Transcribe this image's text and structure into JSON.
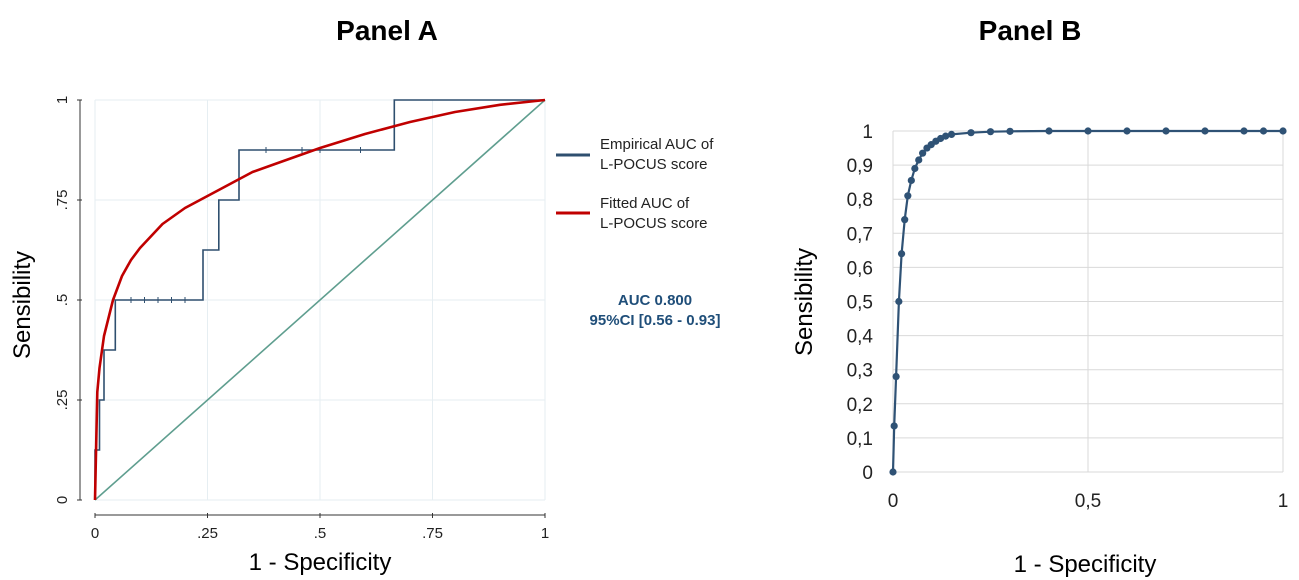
{
  "chart_data": [
    {
      "type": "line",
      "title": "Panel A",
      "xlabel": "1 - Specificity",
      "ylabel": "Sensibility",
      "xlim": [
        0,
        1
      ],
      "ylim": [
        0,
        1
      ],
      "x_ticks": [
        "0",
        ".25",
        ".5",
        ".75",
        "1"
      ],
      "y_ticks": [
        "0",
        ".25",
        ".5",
        ".75",
        "1"
      ],
      "grid": true,
      "legend_position": "right",
      "colors": {
        "empirical": "#2f4f6f",
        "fitted": "#c00000",
        "reference": "#5f9e8f",
        "annotation": "#1f4e79"
      },
      "series": [
        {
          "name": "Empirical AUC of L-POCUS score",
          "x": [
            0,
            0,
            0.01,
            0.01,
            0.02,
            0.02,
            0.045,
            0.045,
            0.24,
            0.24,
            0.275,
            0.275,
            0.32,
            0.32,
            0.665,
            0.665,
            1
          ],
          "y": [
            0,
            0.125,
            0.125,
            0.25,
            0.25,
            0.375,
            0.375,
            0.5,
            0.5,
            0.625,
            0.625,
            0.75,
            0.75,
            0.875,
            0.875,
            1,
            1
          ],
          "tick_marks_x": [
            0.08,
            0.11,
            0.14,
            0.17,
            0.2
          ],
          "tick_marks_x_upper": [
            0.38,
            0.46,
            0.5,
            0.59
          ]
        },
        {
          "name": "Fitted AUC of L-POCUS score",
          "x": [
            0,
            0.005,
            0.01,
            0.02,
            0.04,
            0.06,
            0.08,
            0.1,
            0.15,
            0.2,
            0.25,
            0.3,
            0.35,
            0.4,
            0.5,
            0.6,
            0.7,
            0.8,
            0.9,
            1
          ],
          "y": [
            0,
            0.27,
            0.33,
            0.41,
            0.5,
            0.56,
            0.6,
            0.63,
            0.69,
            0.73,
            0.76,
            0.79,
            0.82,
            0.84,
            0.88,
            0.915,
            0.945,
            0.97,
            0.988,
            1
          ]
        },
        {
          "name": "",
          "x": [
            0,
            1
          ],
          "y": [
            0,
            1
          ]
        }
      ],
      "annotation": [
        "AUC 0.800",
        "95%CI [0.56 - 0.93]"
      ]
    },
    {
      "type": "line",
      "title": "Panel B",
      "xlabel": "1 - Specificity",
      "ylabel": "Sensibility",
      "xlim": [
        0,
        1
      ],
      "ylim": [
        0,
        1
      ],
      "x_ticks": [
        "0",
        "0,5",
        "1"
      ],
      "y_ticks": [
        "0",
        "0,1",
        "0,2",
        "0,3",
        "0,4",
        "0,5",
        "0,6",
        "0,7",
        "0,8",
        "0,9",
        "1"
      ],
      "grid": true,
      "colors": {
        "line": "#2f5275"
      },
      "series": [
        {
          "name": "",
          "x": [
            0,
            0.003,
            0.008,
            0.015,
            0.022,
            0.03,
            0.038,
            0.047,
            0.056,
            0.066,
            0.076,
            0.087,
            0.098,
            0.11,
            0.122,
            0.135,
            0.15,
            0.2,
            0.25,
            0.3,
            0.4,
            0.5,
            0.6,
            0.7,
            0.8,
            0.9,
            0.95,
            1
          ],
          "y": [
            0,
            0.135,
            0.28,
            0.5,
            0.64,
            0.74,
            0.81,
            0.855,
            0.89,
            0.915,
            0.935,
            0.95,
            0.96,
            0.97,
            0.978,
            0.985,
            0.99,
            0.995,
            0.998,
            0.999,
            1,
            1,
            1,
            1,
            1,
            1,
            1,
            1
          ]
        }
      ]
    }
  ]
}
